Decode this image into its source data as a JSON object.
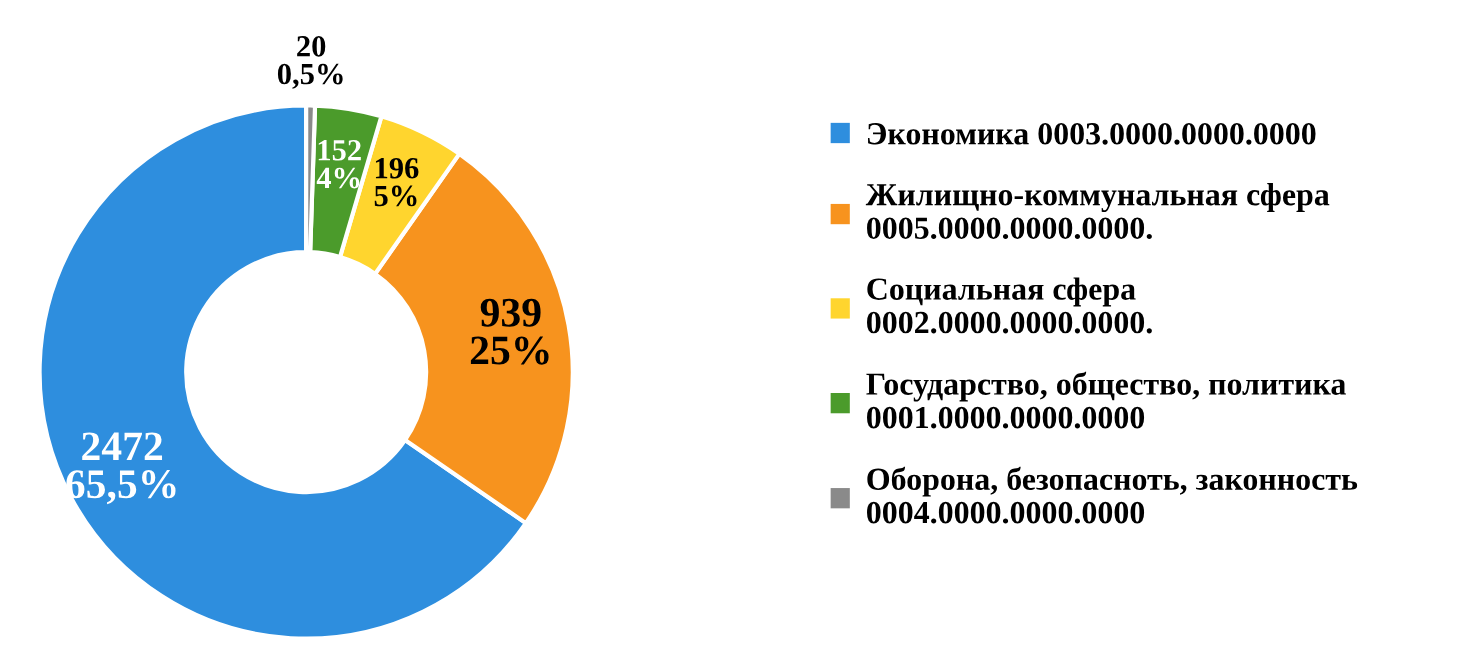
{
  "chart_data": {
    "type": "donut",
    "categories": [
      "Экономика 0003.0000.0000.0000",
      "Жилищно-коммунальная сфера\n0005.0000.0000.0000.",
      "Социальная сфера\n0002.0000.0000.0000.",
      "Государство, общество, политика\n0001.0000.0000.0000",
      "Оборона, безопасноть, законность\n0004.0000.0000.0000"
    ],
    "values": [
      2472,
      939,
      196,
      152,
      20
    ],
    "value_labels": [
      "2472\n65,5%",
      "939\n25%",
      "196\n5%",
      "152\n4%",
      "20\n0,5%"
    ],
    "colors": [
      "#2e8ede",
      "#f7931e",
      "#ffd52e",
      "#4b9b2b",
      "#8a8a8a"
    ],
    "legend": "right"
  }
}
